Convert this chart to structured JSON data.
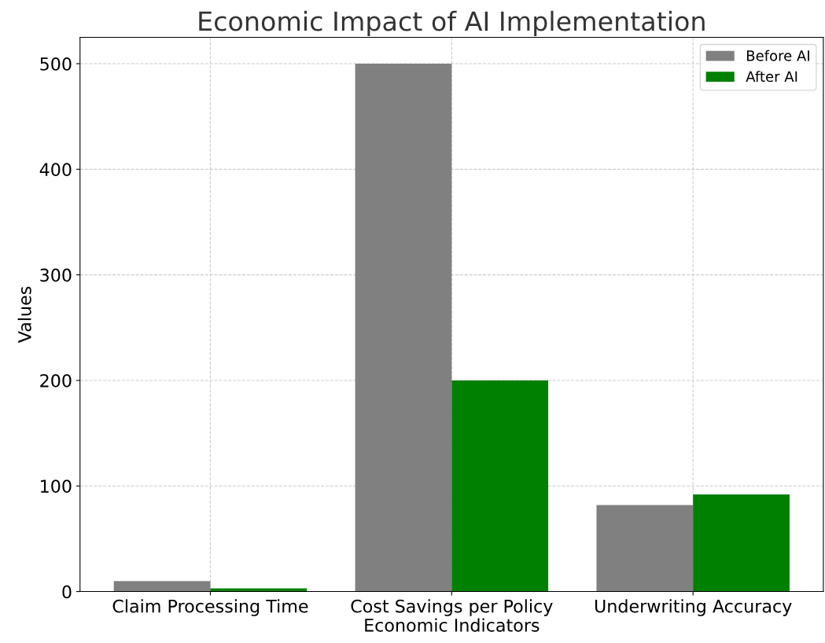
{
  "chart_data": {
    "type": "bar",
    "title": "Economic Impact of AI Implementation",
    "xlabel": "Economic Indicators",
    "ylabel": "Values",
    "categories": [
      "Claim Processing Time",
      "Cost Savings per Policy",
      "Underwriting Accuracy"
    ],
    "series": [
      {
        "name": "Before AI",
        "color": "#808080",
        "values": [
          10,
          500,
          82
        ]
      },
      {
        "name": "After AI",
        "color": "#008000",
        "values": [
          3,
          200,
          92
        ]
      }
    ],
    "ylim": [
      0,
      525
    ],
    "yticks": [
      0,
      100,
      200,
      300,
      400,
      500
    ],
    "grid": true,
    "legend": "top right"
  }
}
